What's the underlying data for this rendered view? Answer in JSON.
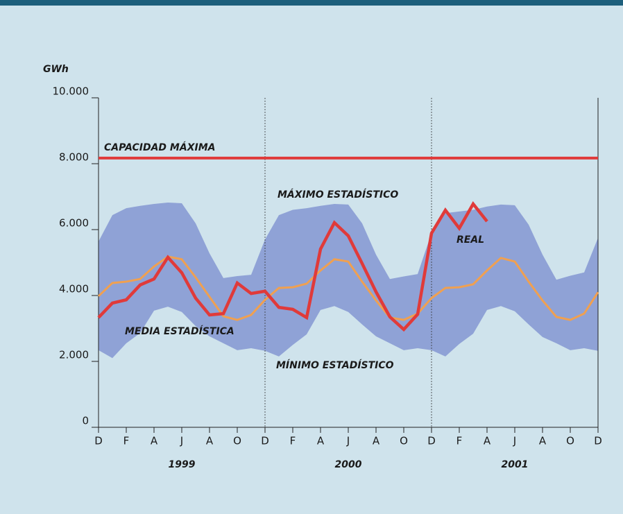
{
  "chart_data": {
    "type": "line",
    "ylabel": "GWh",
    "categories": [
      "D",
      null,
      "F",
      null,
      "A",
      null,
      "J",
      null,
      "A",
      null,
      "O",
      null,
      "D",
      null,
      "F",
      null,
      "A",
      null,
      "J",
      null,
      "A",
      null,
      "O",
      null,
      "D",
      null,
      "F",
      null,
      "A",
      null,
      "J",
      null,
      "A",
      null,
      "O",
      null,
      "D"
    ],
    "years": [
      "1999",
      "2000",
      "2001"
    ],
    "ylim": [
      0,
      10000
    ],
    "yticks": [
      0,
      {
        "value": 2000,
        "label": "2.000"
      },
      {
        "value": 4000,
        "label": "4.000"
      },
      {
        "value": 6000,
        "label": "6.000"
      },
      {
        "value": 8000,
        "label": "8.000"
      },
      {
        "value": 10000,
        "label": "10.000"
      }
    ],
    "capacity": {
      "label": "CAPACIDAD MÁXIMA",
      "value": 8170,
      "color": "#e03a3a"
    },
    "band_color": "#8fa2d6",
    "series": [
      {
        "name": "MÁXIMO ESTADÍSTICO",
        "color": "#8fa2d6",
        "values": [
          5640,
          6440,
          6650,
          6720,
          6780,
          6820,
          6800,
          6190,
          5280,
          4530,
          4590,
          4630,
          5700,
          6440,
          6600,
          6650,
          6720,
          6780,
          6760,
          6190,
          5240,
          4500,
          4580,
          4650,
          5900,
          6500,
          6550,
          6600,
          6700,
          6760,
          6740,
          6150,
          5240,
          4480,
          4600,
          4700,
          5750
        ]
      },
      {
        "name": "MÍNIMO ESTADÍSTICO",
        "color": "#8fa2d6",
        "values": [
          2340,
          2100,
          2550,
          2860,
          3540,
          3660,
          3500,
          3070,
          2760,
          2550,
          2340,
          2400,
          2320,
          2150,
          2500,
          2820,
          3560,
          3680,
          3500,
          3120,
          2760,
          2550,
          2340,
          2400,
          2340,
          2150,
          2530,
          2840,
          3560,
          3680,
          3520,
          3120,
          2740,
          2550,
          2340,
          2400,
          2320
        ]
      },
      {
        "name": "MEDIA ESTADÍSTICA",
        "color": "#f0a050",
        "values": [
          3980,
          4380,
          4420,
          4500,
          4880,
          5180,
          5100,
          4550,
          3960,
          3370,
          3260,
          3410,
          3870,
          4230,
          4250,
          4360,
          4760,
          5100,
          5030,
          4420,
          3850,
          3330,
          3260,
          3450,
          3920,
          4230,
          4250,
          4340,
          4760,
          5140,
          5030,
          4420,
          3850,
          3350,
          3260,
          3450,
          4100
        ]
      },
      {
        "name": "REAL",
        "color": "#e03a3a",
        "values": [
          3330,
          3770,
          3870,
          4320,
          4500,
          5160,
          4690,
          3920,
          3410,
          3450,
          4380,
          4060,
          4130,
          3640,
          3580,
          3330,
          5410,
          6210,
          5810,
          4970,
          4110,
          3350,
          2970,
          3430,
          5890,
          6590,
          6040,
          6780,
          6250,
          null,
          null,
          null,
          null,
          null,
          null,
          null,
          null
        ]
      }
    ]
  }
}
